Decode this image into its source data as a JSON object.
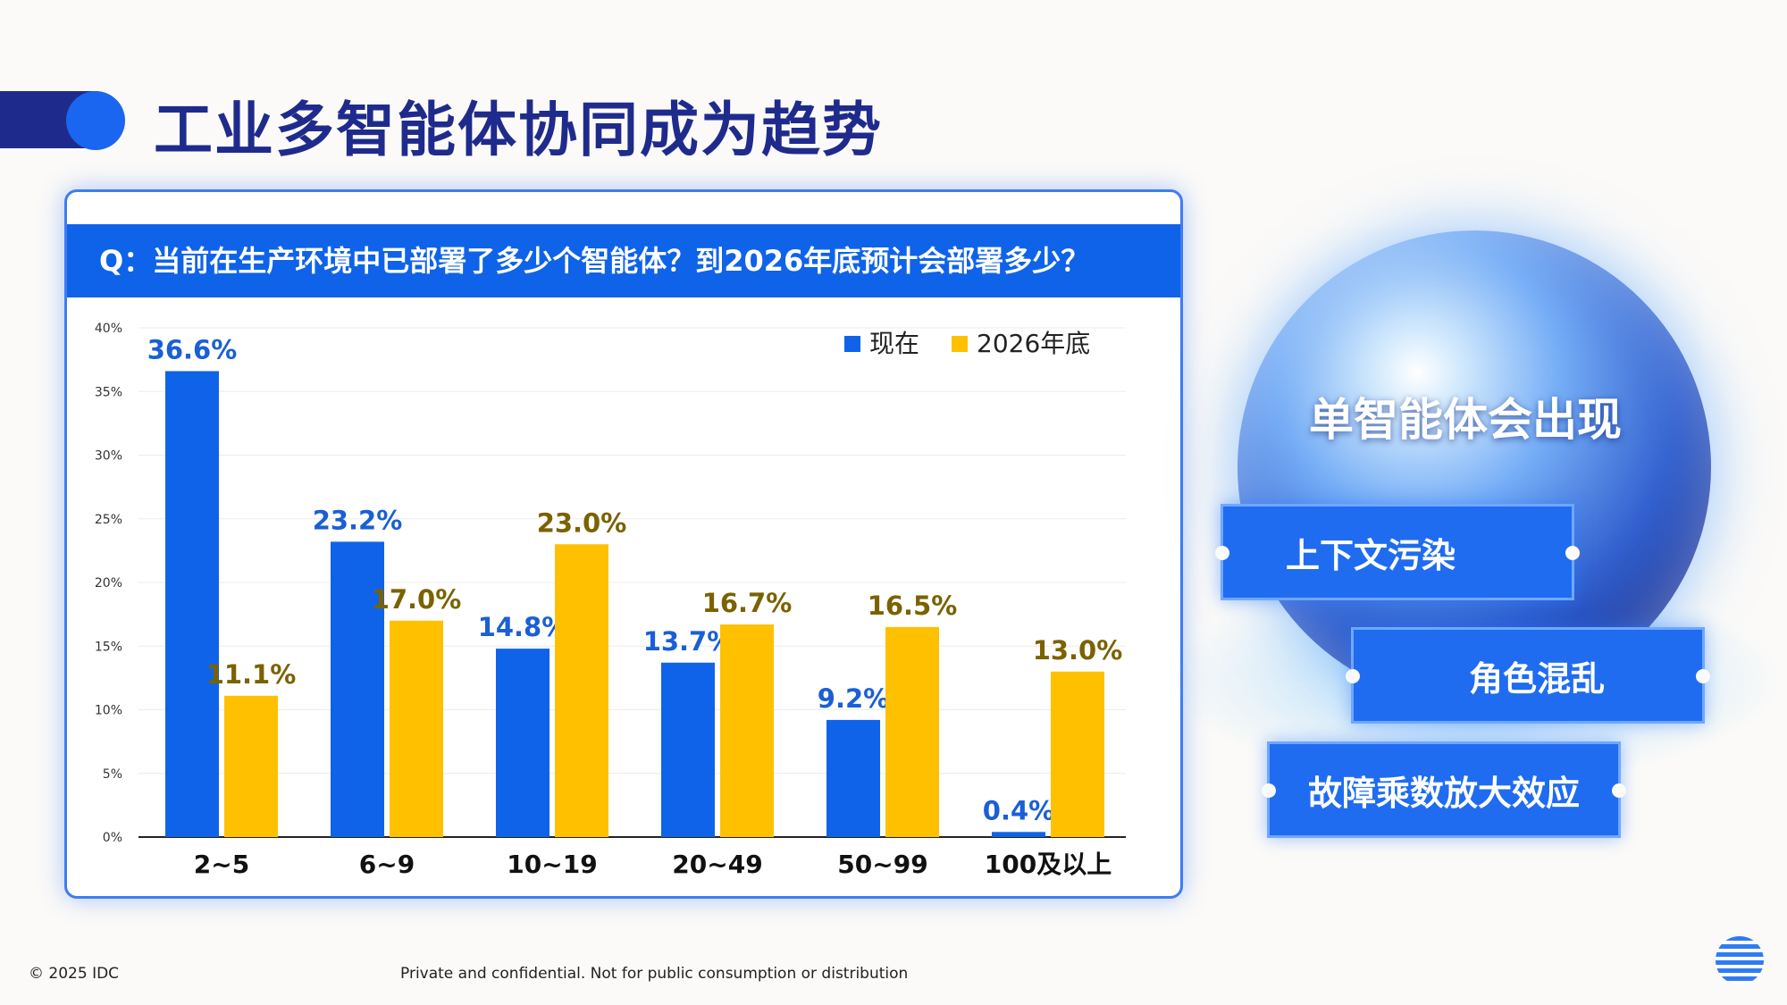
{
  "page": {
    "title": "工业多智能体协同成为趋势",
    "question": "Q：当前在生产环境中已部署了多少个智能体？到2026年底预计会部署多少？",
    "footer_left": "© 2025 IDC",
    "footer_mid": "Private and confidential. Not for public consumption or distribution"
  },
  "side": {
    "sphere_text": "单智能体会出现",
    "tags": [
      "上下文污染",
      "角色混乱",
      "故障乘数放大效应"
    ]
  },
  "colors": {
    "series_now": "#0f63e8",
    "series_2026": "#ffc000",
    "label_now": "#1a5fd6",
    "label_2026": "#7a6200",
    "title": "#1f2b8c"
  },
  "chart_data": {
    "type": "bar",
    "categories": [
      "2~5",
      "6~9",
      "10~19",
      "20~49",
      "50~99",
      "100及以上"
    ],
    "series": [
      {
        "name": "现在",
        "values": [
          36.6,
          23.2,
          14.8,
          13.7,
          9.2,
          0.4
        ],
        "labels": [
          "36.6%",
          "23.2%",
          "14.8%",
          "13.7%",
          "9.2%",
          "0.4%"
        ]
      },
      {
        "name": "2026年底",
        "values": [
          11.1,
          17.0,
          23.0,
          16.7,
          16.5,
          13.0
        ],
        "labels": [
          "11.1%",
          "17.0%",
          "23.0%",
          "16.7%",
          "16.5%",
          "13.0%"
        ]
      }
    ],
    "ylim": [
      0,
      40
    ],
    "yticks": [
      0,
      5,
      10,
      15,
      20,
      25,
      30,
      35,
      40
    ],
    "ytick_labels": [
      "0%",
      "5%",
      "10%",
      "15%",
      "20%",
      "25%",
      "30%",
      "35%",
      "40%"
    ],
    "grid": true,
    "legend": "top-right"
  }
}
